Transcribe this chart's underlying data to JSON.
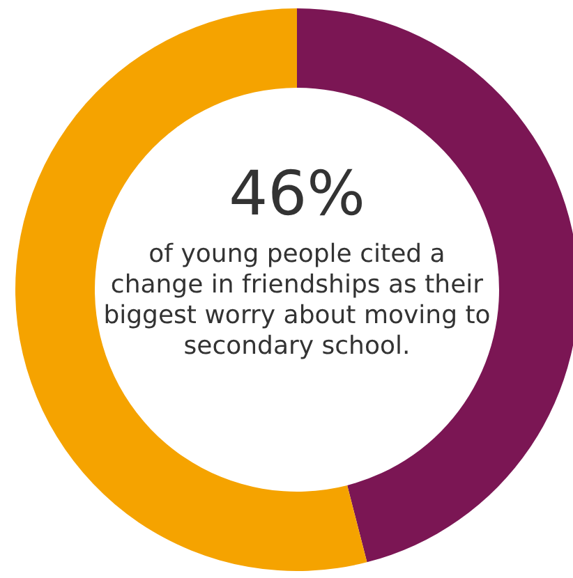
{
  "chart_data": {
    "type": "donut",
    "categories": [
      null,
      null
    ],
    "values": [
      46,
      54
    ],
    "colors": [
      "#7b1654",
      "#f5a300"
    ],
    "value_labels": [
      "46%",
      null
    ],
    "annotations": [
      "of young people cited a change in friendships as their biggest worry about moving to secondary school."
    ],
    "legend": false
  }
}
